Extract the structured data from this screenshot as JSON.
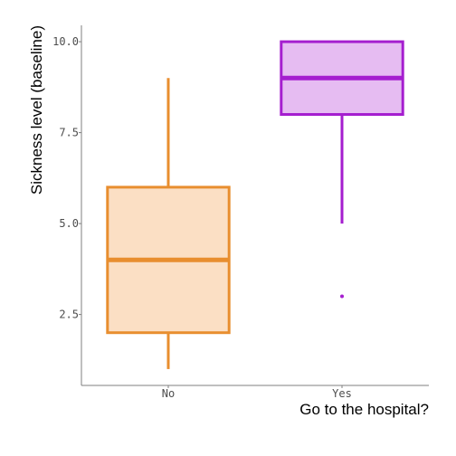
{
  "chart_data": {
    "type": "box",
    "xlabel": "Go to the hospital?",
    "ylabel": "Sickness level (baseline)",
    "ylim": [
      0.55,
      10.45
    ],
    "yticks": [
      2.5,
      5.0,
      7.5,
      10.0
    ],
    "ytick_labels": [
      "2.5",
      "5.0",
      "7.5",
      "10.0"
    ],
    "categories": [
      "No",
      "Yes"
    ],
    "grid": false,
    "legend": "none",
    "boxes": [
      {
        "category": "No",
        "whisker_low": 1,
        "q1": 2,
        "median": 4,
        "q3": 6,
        "whisker_high": 9,
        "outliers": [],
        "fill": "#FBDFC4",
        "stroke": "#E88E2F"
      },
      {
        "category": "Yes",
        "whisker_low": 5,
        "q1": 8,
        "median": 9,
        "q3": 10,
        "whisker_high": 10,
        "outliers": [
          3
        ],
        "fill": "#E6BCF2",
        "stroke": "#A51ECF"
      }
    ],
    "axis_color": "#7f7f7f"
  }
}
